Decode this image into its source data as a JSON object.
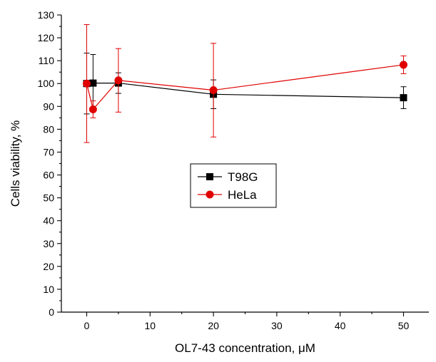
{
  "chart_data": {
    "type": "line",
    "title": "",
    "xlabel": "OL7-43 concentration, μM",
    "ylabel": "Cells viability, %",
    "xlim": [
      -4,
      54
    ],
    "ylim": [
      0,
      130
    ],
    "x_ticks": [
      0,
      10,
      20,
      30,
      40,
      50
    ],
    "y_ticks": [
      0,
      10,
      20,
      30,
      40,
      50,
      60,
      70,
      80,
      90,
      100,
      110,
      120,
      130
    ],
    "grid": false,
    "legend_position": "center",
    "series": [
      {
        "name": "T98G",
        "color": "#000000",
        "marker": "square",
        "x": [
          0,
          1,
          5,
          20,
          50
        ],
        "y": [
          100,
          100.2,
          100.2,
          95.3,
          93.8
        ],
        "err": [
          13.3,
          12.5,
          4.5,
          6.3,
          4.8
        ]
      },
      {
        "name": "HeLa",
        "color": "#e00000",
        "marker": "circle",
        "x": [
          0,
          1,
          5,
          20,
          50
        ],
        "y": [
          100,
          88.7,
          101.4,
          97.1,
          108.2
        ],
        "err": [
          25.8,
          3.7,
          13.9,
          20.5,
          3.9
        ]
      }
    ]
  }
}
